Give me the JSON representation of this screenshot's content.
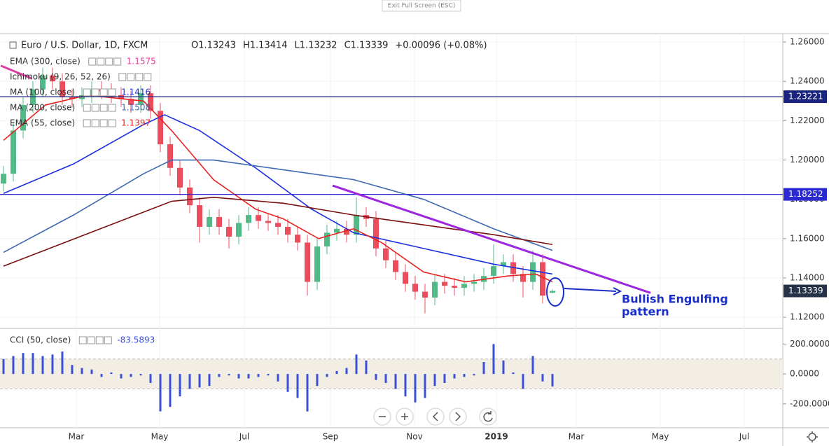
{
  "ui": {
    "exit_button": "Exit Full Screen (ESC)"
  },
  "chart_data": [
    {
      "type": "candlestick",
      "title": "Euro / U.S. Dollar, 1D, FXCM",
      "header": [
        "O1.13243",
        "H1.13414",
        "L1.13232",
        "C1.13339",
        "+0.00096 (+0.08%)"
      ],
      "x": [
        0,
        7,
        14,
        21,
        28,
        35,
        42,
        49,
        56,
        63,
        70,
        77,
        84,
        91,
        98,
        105,
        112,
        119,
        126,
        133,
        140,
        147,
        154,
        161,
        168,
        175,
        182,
        189,
        196,
        203,
        210,
        217,
        224,
        231,
        238,
        245,
        252,
        259,
        266,
        273,
        280,
        287,
        294,
        301,
        308,
        315,
        322,
        329,
        336,
        343,
        350,
        357,
        364,
        371,
        378,
        385,
        392
      ],
      "open": [
        1.188,
        1.193,
        1.215,
        1.228,
        1.236,
        1.243,
        1.24,
        1.232,
        1.231,
        1.233,
        1.236,
        1.235,
        1.233,
        1.231,
        1.228,
        1.234,
        1.225,
        1.208,
        1.196,
        1.186,
        1.177,
        1.166,
        1.171,
        1.166,
        1.161,
        1.168,
        1.172,
        1.169,
        1.168,
        1.166,
        1.162,
        1.158,
        1.138,
        1.156,
        1.163,
        1.165,
        1.162,
        1.172,
        1.17,
        1.155,
        1.149,
        1.143,
        1.137,
        1.133,
        1.13,
        1.138,
        1.136,
        1.135,
        1.137,
        1.138,
        1.141,
        1.146,
        1.148,
        1.142,
        1.138,
        1.148,
        1.13243
      ],
      "high": [
        1.197,
        1.219,
        1.232,
        1.24,
        1.247,
        1.247,
        1.244,
        1.236,
        1.237,
        1.24,
        1.24,
        1.239,
        1.237,
        1.235,
        1.238,
        1.238,
        1.229,
        1.212,
        1.2,
        1.19,
        1.181,
        1.175,
        1.175,
        1.17,
        1.172,
        1.176,
        1.176,
        1.173,
        1.172,
        1.17,
        1.166,
        1.162,
        1.16,
        1.167,
        1.169,
        1.169,
        1.181,
        1.176,
        1.174,
        1.159,
        1.153,
        1.147,
        1.141,
        1.137,
        1.142,
        1.142,
        1.14,
        1.141,
        1.142,
        1.145,
        1.157,
        1.152,
        1.152,
        1.146,
        1.154,
        1.152,
        1.13414
      ],
      "low": [
        1.184,
        1.189,
        1.211,
        1.224,
        1.232,
        1.236,
        1.228,
        1.227,
        1.227,
        1.229,
        1.231,
        1.229,
        1.227,
        1.224,
        1.224,
        1.221,
        1.204,
        1.192,
        1.182,
        1.173,
        1.158,
        1.162,
        1.162,
        1.155,
        1.157,
        1.164,
        1.165,
        1.164,
        1.162,
        1.158,
        1.154,
        1.131,
        1.134,
        1.152,
        1.159,
        1.158,
        1.158,
        1.166,
        1.151,
        1.145,
        1.139,
        1.133,
        1.129,
        1.122,
        1.126,
        1.132,
        1.131,
        1.131,
        1.133,
        1.134,
        1.137,
        1.142,
        1.138,
        1.13,
        1.134,
        1.127,
        1.13232
      ],
      "close": [
        1.193,
        1.215,
        1.228,
        1.236,
        1.243,
        1.24,
        1.232,
        1.231,
        1.233,
        1.236,
        1.235,
        1.233,
        1.231,
        1.228,
        1.234,
        1.225,
        1.208,
        1.196,
        1.186,
        1.177,
        1.166,
        1.171,
        1.166,
        1.161,
        1.168,
        1.172,
        1.169,
        1.168,
        1.166,
        1.162,
        1.158,
        1.138,
        1.156,
        1.163,
        1.165,
        1.162,
        1.172,
        1.17,
        1.155,
        1.149,
        1.143,
        1.137,
        1.133,
        1.13,
        1.138,
        1.136,
        1.135,
        1.137,
        1.138,
        1.141,
        1.146,
        1.148,
        1.142,
        1.138,
        1.148,
        1.131,
        1.13339
      ],
      "up_color": "#53b987",
      "down_color": "#eb4d5c",
      "last_price_color": "#263247",
      "series": [
        {
          "name": "EMA (300, close)",
          "legend_value": 1.1575,
          "color": "#e040a0",
          "x": [
            -2,
            20
          ],
          "values": [
            1.248,
            1.2415
          ]
        },
        {
          "name": "Ichimoku (9, 26, 52, 26)",
          "color": "#3c78d8",
          "x": [],
          "values": []
        },
        {
          "name": "MA (100, close)",
          "legend_value": 1.1416,
          "color": "#1a2fe0",
          "x": [
            0,
            50,
            100,
            115,
            140,
            180,
            220,
            250,
            300,
            350,
            392
          ],
          "values": [
            1.183,
            1.198,
            1.218,
            1.223,
            1.215,
            1.196,
            1.175,
            1.163,
            1.155,
            1.147,
            1.142
          ]
        },
        {
          "name": "MA (200, close)",
          "legend_value": 1.1508,
          "color": "#3f6ab0",
          "x": [
            0,
            50,
            100,
            120,
            150,
            200,
            250,
            300,
            350,
            392
          ],
          "values": [
            1.153,
            1.172,
            1.193,
            1.2,
            1.2,
            1.195,
            1.19,
            1.18,
            1.165,
            1.154
          ]
        },
        {
          "name": "EMA (55, close)",
          "legend_value": 1.1397,
          "color": "#e8221f",
          "x": [
            0,
            30,
            60,
            100,
            120,
            150,
            180,
            200,
            225,
            250,
            270,
            300,
            330,
            360,
            380,
            392
          ],
          "values": [
            1.21,
            1.228,
            1.233,
            1.23,
            1.215,
            1.19,
            1.175,
            1.17,
            1.16,
            1.165,
            1.158,
            1.143,
            1.138,
            1.141,
            1.142,
            1.138
          ]
        },
        {
          "color": "#7b1010",
          "x": [
            0,
            40,
            80,
            120,
            150,
            200,
            250,
            300,
            350,
            392
          ],
          "values": [
            1.146,
            1.157,
            1.168,
            1.179,
            1.181,
            1.178,
            1.172,
            1.167,
            1.162,
            1.157
          ]
        }
      ],
      "price_lines": [
        {
          "value": 1.23221,
          "color": "#1a237e"
        },
        {
          "value": 1.18252,
          "color": "#2a2ad0"
        }
      ],
      "trendline": {
        "color": "#9c27e0",
        "x": [
          235,
          462
        ],
        "values": [
          1.187,
          1.1324
        ]
      },
      "annotation": [
        "Bullish Engulfing",
        "pattern"
      ],
      "xlim": [
        0,
        556
      ],
      "xticks": [
        {
          "value": 52,
          "label": "Mar"
        },
        {
          "value": 111.5,
          "label": "May"
        },
        {
          "value": 172,
          "label": "Jul"
        },
        {
          "value": 233.5,
          "label": "Sep"
        },
        {
          "value": 293.5,
          "label": "Nov"
        },
        {
          "value": 352,
          "label": "2019"
        },
        {
          "value": 409,
          "label": "Mar"
        },
        {
          "value": 469,
          "label": "May"
        },
        {
          "value": 529,
          "label": "Jul"
        }
      ],
      "ylim": [
        1.1147,
        1.2643
      ],
      "yticks": [
        {
          "value": 1.26,
          "label": "1.26000"
        },
        {
          "value": 1.24,
          "label": "1.24000"
        },
        {
          "value": 1.22,
          "label": "1.22000"
        },
        {
          "value": 1.2,
          "label": "1.20000"
        },
        {
          "value": 1.18,
          "label": "1.18000"
        },
        {
          "value": 1.16,
          "label": "1.16000"
        },
        {
          "value": 1.14,
          "label": "1.14000"
        },
        {
          "value": 1.12,
          "label": "1.12000"
        }
      ]
    },
    {
      "type": "bar",
      "title": "CCI (50, close)",
      "x": [
        0,
        7,
        14,
        21,
        28,
        35,
        42,
        49,
        56,
        63,
        70,
        77,
        84,
        91,
        98,
        105,
        112,
        119,
        126,
        133,
        140,
        147,
        154,
        161,
        168,
        175,
        182,
        189,
        196,
        203,
        210,
        217,
        224,
        231,
        238,
        245,
        252,
        259,
        266,
        273,
        280,
        287,
        294,
        301,
        308,
        315,
        322,
        329,
        336,
        343,
        350,
        357,
        364,
        371,
        378,
        385,
        392
      ],
      "values": [
        100,
        120,
        140,
        140,
        120,
        130,
        150,
        60,
        40,
        30,
        -20,
        10,
        -30,
        -20,
        -10,
        -60,
        -250,
        -220,
        -150,
        -100,
        -90,
        -80,
        -20,
        -10,
        -30,
        -30,
        -20,
        -10,
        -50,
        -120,
        -160,
        -250,
        -80,
        -20,
        20,
        40,
        130,
        90,
        -40,
        -60,
        -100,
        -150,
        -190,
        -160,
        -80,
        -60,
        -30,
        -20,
        -10,
        80,
        200,
        90,
        10,
        -100,
        120,
        -50,
        -83.5893
      ],
      "color": "#3a4fd8",
      "band": [
        -100,
        100
      ],
      "band_color": "#f3eee4",
      "ylim": [
        -355,
        300
      ],
      "yticks": [
        {
          "value": 200,
          "label": "200.0000"
        },
        {
          "value": 0,
          "label": "0.0000"
        },
        {
          "value": -200,
          "label": "-200.0000"
        }
      ]
    }
  ]
}
